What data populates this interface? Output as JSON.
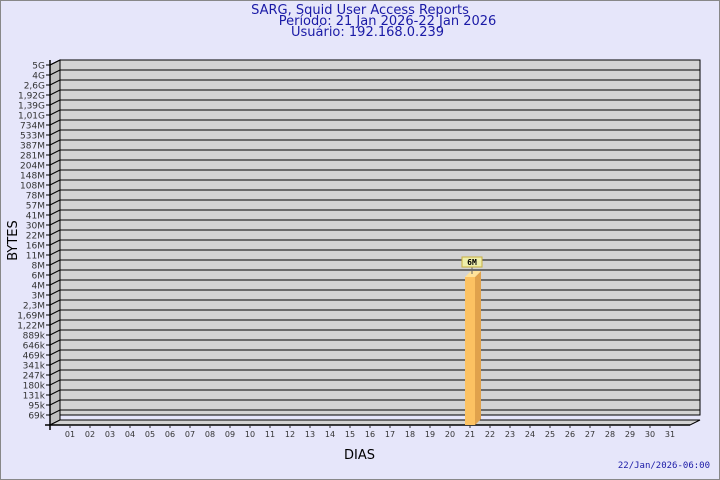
{
  "title": {
    "line1": "SARG, Squid User Access Reports",
    "line2": "Período: 21 Jan 2026-22 Jan 2026",
    "line3": "Usuário: 192.168.0.239"
  },
  "timestamp": "22/Jan/2026-06:00",
  "chart_data": {
    "type": "bar",
    "xlabel": "DIAS",
    "ylabel": "BYTES",
    "y_scale": "log",
    "y_ticks": [
      "5G",
      "4G",
      "2,6G",
      "1,92G",
      "1,39G",
      "1,01G",
      "734M",
      "533M",
      "387M",
      "281M",
      "204M",
      "148M",
      "108M",
      "78M",
      "57M",
      "41M",
      "30M",
      "22M",
      "16M",
      "11M",
      "8M",
      "6M",
      "4M",
      "3M",
      "2,3M",
      "1,69M",
      "1,22M",
      "889k",
      "646k",
      "469k",
      "341k",
      "247k",
      "180k",
      "131k",
      "95k",
      "69k"
    ],
    "categories": [
      "01",
      "02",
      "03",
      "04",
      "05",
      "06",
      "07",
      "08",
      "09",
      "10",
      "11",
      "12",
      "13",
      "14",
      "15",
      "16",
      "17",
      "18",
      "19",
      "20",
      "21",
      "22",
      "23",
      "24",
      "25",
      "26",
      "27",
      "28",
      "29",
      "30",
      "31"
    ],
    "bars": [
      {
        "category": "21",
        "value_label": "6M"
      }
    ],
    "grid": true,
    "colors": {
      "bar": "#fcc262",
      "bar_side": "#e0a24c",
      "bar_top": "#ffe39a",
      "wall": "#d3d3d3",
      "side_wall": "#c0c0c0",
      "background": "#e6e6fa",
      "title": "#1a1aa6"
    }
  }
}
